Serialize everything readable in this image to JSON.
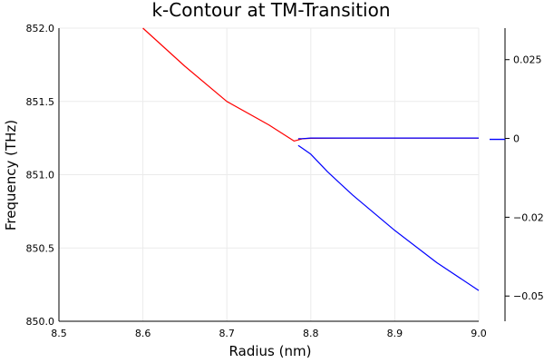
{
  "chart_data": [
    {
      "type": "line",
      "title": "k-Contour at TM-Transition",
      "xlabel": "Radius (nm)",
      "ylabel": "Frequency (THz)",
      "xlim": [
        8.5,
        9.0
      ],
      "ylim": [
        850.0,
        852.0
      ],
      "xticks": [
        "8.5",
        "8.6",
        "8.7",
        "8.8",
        "8.9",
        "9.0"
      ],
      "yticks": [
        "850.0",
        "850.5",
        "851.0",
        "851.5",
        "852.0"
      ],
      "grid": true,
      "series": [
        {
          "color": "#ff0000",
          "x": [
            8.6,
            8.65,
            8.7,
            8.75,
            8.78,
            8.79,
            8.8,
            8.85,
            8.9,
            8.95,
            9.0
          ],
          "y": [
            852.0,
            851.74,
            851.5,
            851.34,
            851.23,
            851.245,
            851.248,
            851.25,
            851.25,
            851.25,
            851.25
          ]
        },
        {
          "color": "#0000ff",
          "x": [
            8.785,
            8.79,
            8.8,
            8.85,
            8.9,
            8.95,
            9.0
          ],
          "y": [
            851.245,
            851.246,
            851.25,
            851.25,
            851.25,
            851.25,
            851.25
          ]
        },
        {
          "color": "#0000ff",
          "x": [
            8.785,
            8.79,
            8.8,
            8.82,
            8.85,
            8.9,
            8.95,
            9.0
          ],
          "y": [
            851.2,
            851.18,
            851.14,
            851.02,
            850.86,
            850.62,
            850.4,
            850.21
          ]
        }
      ]
    },
    {
      "type": "line",
      "ylim": [
        -0.058,
        0.035
      ],
      "yticks": [
        0.025,
        0,
        -0.025,
        -0.05
      ],
      "yticklabels": [
        "0.025",
        "0",
        "−0.025",
        "−0.050"
      ],
      "grid": false,
      "legend": "right",
      "legend_items": [
        {
          "color": "#0000ff"
        }
      ]
    }
  ]
}
